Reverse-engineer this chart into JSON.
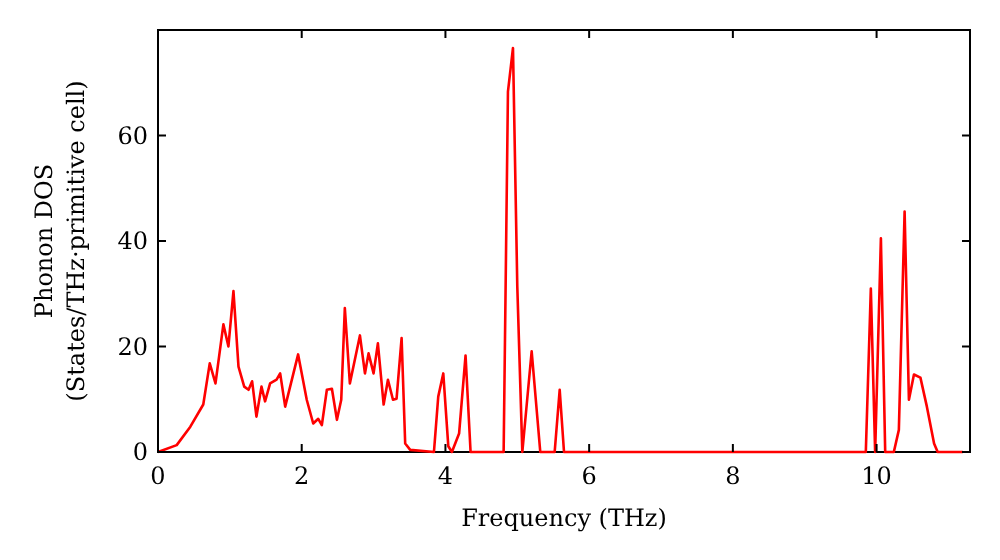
{
  "chart_data": {
    "type": "line",
    "xlabel": "Frequency (THz)",
    "ylabel": "Phonon DOS\n(States/THz·primitive cell)",
    "xlim": [
      0,
      11.3
    ],
    "ylim": [
      0,
      80
    ],
    "xticks": [
      0,
      2,
      4,
      6,
      8,
      10
    ],
    "yticks": [
      0,
      20,
      40,
      60
    ],
    "grid": false,
    "marker": "none",
    "line_style": "solid",
    "series": [
      {
        "color": "#ff0000",
        "x": [
          0,
          0.26,
          0.45,
          0.63,
          0.72,
          0.8,
          0.91,
          0.98,
          1.05,
          1.12,
          1.2,
          1.26,
          1.31,
          1.37,
          1.44,
          1.49,
          1.56,
          1.65,
          1.7,
          1.77,
          1.95,
          2.07,
          2.16,
          2.23,
          2.28,
          2.35,
          2.42,
          2.49,
          2.55,
          2.6,
          2.67,
          2.81,
          2.88,
          2.93,
          3.0,
          3.06,
          3.14,
          3.2,
          3.27,
          3.32,
          3.39,
          3.44,
          3.51,
          3.84,
          3.9,
          3.97,
          4.04,
          4.09,
          4.19,
          4.28,
          4.35,
          4.81,
          4.87,
          4.94,
          5.0,
          5.07,
          5.2,
          5.32,
          5.52,
          5.59,
          5.65,
          9.85,
          9.92,
          9.98,
          10.06,
          10.12,
          10.24,
          10.31,
          10.39,
          10.45,
          10.52,
          10.61,
          10.7,
          10.8,
          10.85,
          11.2
        ],
        "values": [
          0,
          1.3,
          4.8,
          9,
          16.8,
          13,
          24.2,
          20,
          30.5,
          16.2,
          12.4,
          11.8,
          13.4,
          6.7,
          12.4,
          9.6,
          13,
          13.7,
          14.9,
          8.6,
          18.5,
          9.9,
          5.4,
          6.3,
          5.1,
          11.8,
          12,
          6.1,
          9.9,
          27.3,
          13,
          22.1,
          14.9,
          18.7,
          14.9,
          20.6,
          9,
          13.7,
          9.9,
          10.1,
          21.6,
          1.6,
          0.4,
          0,
          10.5,
          14.9,
          1.1,
          0,
          3.5,
          18.3,
          0,
          0,
          68.3,
          76.6,
          31.4,
          0,
          19.1,
          0,
          0,
          11.8,
          0,
          0,
          31,
          0,
          40.5,
          0,
          0,
          4.2,
          45.6,
          9.9,
          14.7,
          14.1,
          8.6,
          1.6,
          0,
          0
        ]
      }
    ]
  }
}
